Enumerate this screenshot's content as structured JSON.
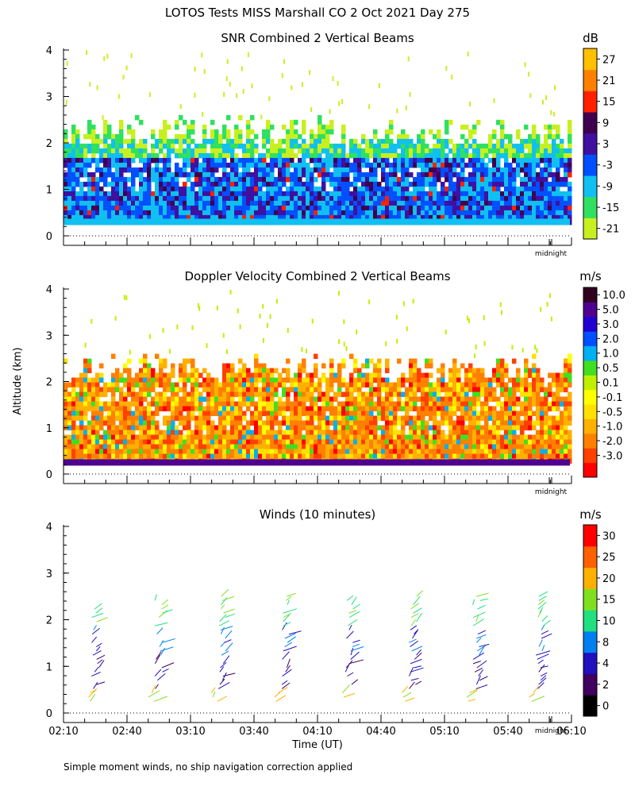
{
  "page_title": "LOTOS Tests MISS Marshall CO   2 Oct 2021 Day 275",
  "footnote": "Simple moment winds, no ship navigation correction applied",
  "colors": {
    "snr_scale": [
      "#c8f020",
      "#30e060",
      "#10c0f0",
      "#0050ff",
      "#4010a0",
      "#400050",
      "#ff2000",
      "#ff8000",
      "#ffc000"
    ],
    "doppler_scale": [
      "#ff0000",
      "#ff4000",
      "#ff8000",
      "#ffb000",
      "#ffe000",
      "#ffff00",
      "#c0f000",
      "#40e020",
      "#00b0f0",
      "#0050ff",
      "#2000d0",
      "#500090",
      "#300020"
    ],
    "wind_scale": [
      "#000000",
      "#400060",
      "#2010c0",
      "#0080f0",
      "#20e080",
      "#80e020",
      "#ffb000",
      "#ff6000",
      "#ff0000"
    ]
  },
  "chart_data": [
    {
      "type": "heatmap",
      "title": "SNR Combined 2 Vertical Beams",
      "units": "dB",
      "ylabel": "",
      "ylim": [
        0,
        4
      ],
      "yticks": [
        "0",
        "1",
        "2",
        "3",
        "4"
      ],
      "xlim_minutes": [
        130,
        370
      ],
      "midnight_label": "midnight",
      "colorbar_labels": [
        "-21",
        "-15",
        "-9",
        "-3",
        "3",
        "9",
        "15",
        "21",
        "27"
      ],
      "signal_top_km": 2.1,
      "signal_bottom_km": 0.3
    },
    {
      "type": "heatmap",
      "title": "Doppler Velocity Combined 2 Vertical Beams",
      "units": "m/s",
      "ylabel": "Altitude (km)",
      "ylim": [
        0,
        4
      ],
      "yticks": [
        "0",
        "1",
        "2",
        "3",
        "4"
      ],
      "xlim_minutes": [
        130,
        370
      ],
      "midnight_label": "midnight",
      "colorbar_labels": [
        "-3.0",
        "-2.0",
        "-1.0",
        "-0.5",
        "-0.1",
        "0.1",
        "0.5",
        "1.0",
        "2.0",
        "3.0",
        "5.0",
        "10.0"
      ],
      "signal_top_km": 2.1,
      "signal_bottom_km": 0.25
    },
    {
      "type": "scatter",
      "title": "Winds (10 minutes)",
      "units": "m/s",
      "ylabel": "",
      "xlabel": "Time (UT)",
      "ylim": [
        0,
        4
      ],
      "yticks": [
        "0",
        "1",
        "2",
        "3",
        "4"
      ],
      "xlim_minutes": [
        130,
        370
      ],
      "xticks": [
        "02:10",
        "02:40",
        "03:10",
        "03:40",
        "04:10",
        "04:40",
        "05:10",
        "05:40",
        "06:10"
      ],
      "midnight_label": "midnight",
      "colorbar_labels": [
        "0",
        "2",
        "4",
        "8",
        "10",
        "15",
        "20",
        "25",
        "30"
      ],
      "profile_times_minutes": [
        145,
        175,
        205,
        235,
        265,
        295,
        325,
        355
      ]
    }
  ]
}
